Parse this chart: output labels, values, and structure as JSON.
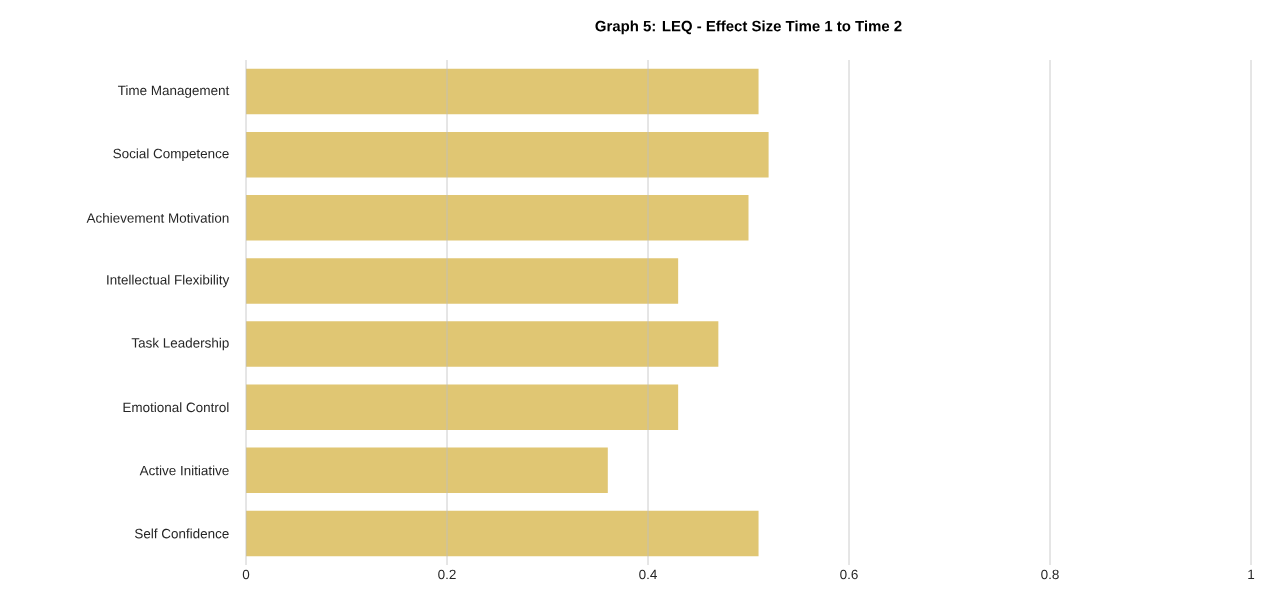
{
  "chart_data": {
    "type": "bar",
    "orientation": "horizontal",
    "title": "Graph 5: LEQ - Effect Size Time 1 to Time 2",
    "categories": [
      "Time Management",
      "Social Competence",
      "Achievement Motivation",
      "Intellectual Flexibility",
      "Task Leadership",
      "Emotional Control",
      "Active Initiative",
      "Self Confidence"
    ],
    "values": [
      0.51,
      0.52,
      0.5,
      0.43,
      0.47,
      0.43,
      0.36,
      0.51
    ],
    "color": "#e0c673",
    "xlim": [
      0,
      1
    ],
    "xticks": [
      0,
      0.2,
      0.4,
      0.6,
      0.8,
      1
    ],
    "grid": "x"
  }
}
